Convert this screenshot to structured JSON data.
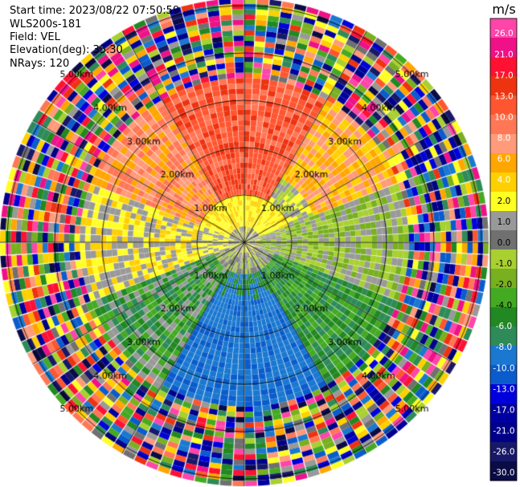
{
  "header": {
    "start_time": "Start time: 2023/08/22 07:50:59",
    "instrument": "WLS200s-181",
    "field": "Field: VEL",
    "elevation": "Elevation(deg): 35.30",
    "nrays": "NRays: 120"
  },
  "chart_data": {
    "type": "ppi-radar",
    "field": "VEL",
    "nrays": 120,
    "range_rings_km": [
      1.0,
      2.0,
      3.0,
      4.0,
      5.0
    ],
    "ring_labels": [
      "1.00km",
      "2.00km",
      "3.00km",
      "4.00km",
      "5.00km"
    ],
    "colorbar": {
      "unit": "m/s",
      "tick_labels": [
        "26.0",
        "21.0",
        "17.0",
        "13.0",
        "10.0",
        "8.0",
        "6.0",
        "4.0",
        "2.0",
        "1.0",
        "0.0",
        "-1.0",
        "-2.0",
        "-4.0",
        "-6.0",
        "-8.0",
        "-10.0",
        "-13.0",
        "-17.0",
        "-21.0",
        "-26.0",
        "-30.0"
      ],
      "colors": [
        "#ff44aa",
        "#ee1188",
        "#ff1133",
        "#ee3311",
        "#ff5530",
        "#ff7755",
        "#ff9a7a",
        "#ffa600",
        "#ffd000",
        "#ffff22",
        "#999999",
        "#707070",
        "#a8d030",
        "#78b020",
        "#44aa22",
        "#228822",
        "#2e8b57",
        "#1a78d0",
        "#0a5ccc",
        "#0000dd",
        "#0000a0",
        "#000088",
        "#181868",
        "#0b0b45"
      ]
    },
    "description_regions": [
      {
        "sector": "north",
        "velocity_range": [
          6,
          13
        ]
      },
      {
        "sector": "west-north",
        "velocity_range": [
          4,
          10
        ]
      },
      {
        "sector": "center-east",
        "velocity_range": [
          -2,
          2
        ]
      },
      {
        "sector": "south",
        "velocity_range": [
          -10,
          -6
        ]
      },
      {
        "sector": "south-west",
        "velocity_range": [
          -6,
          -2
        ]
      },
      {
        "sector": "outer-ring",
        "velocity_range": [
          -30,
          26
        ]
      }
    ]
  }
}
